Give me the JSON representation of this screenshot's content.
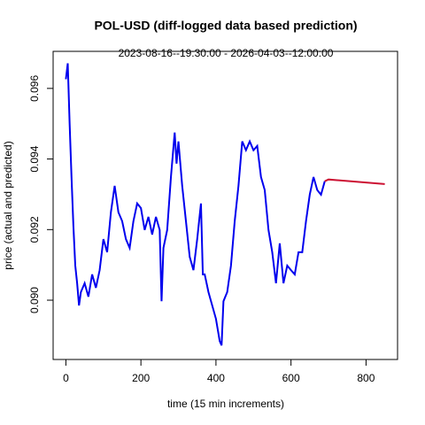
{
  "chart_data": {
    "type": "line",
    "title": "POL-USD (diff-logged data based prediction)",
    "subtitle": "2023-08-16--19:30:00  -  2026-04-03--12:00:00",
    "xlabel": "time (15 min increments)",
    "ylabel": "price (actual and predicted)",
    "xlim": [
      -34,
      884
    ],
    "ylim": [
      0.08832,
      0.09705
    ],
    "xticks": [
      0,
      200,
      400,
      600,
      800
    ],
    "yticks": [
      {
        "value": 0.09,
        "label": "0.090"
      },
      {
        "value": 0.092,
        "label": "0.092"
      },
      {
        "value": 0.094,
        "label": "0.094"
      },
      {
        "value": 0.096,
        "label": "0.096"
      }
    ],
    "series": [
      {
        "color": "#0000ee",
        "x": [
          0,
          5,
          10,
          15,
          20,
          25,
          30,
          35,
          40,
          50,
          60,
          70,
          80,
          90,
          100,
          110,
          120,
          130,
          140,
          150,
          160,
          170,
          180,
          190,
          200,
          210,
          220,
          230,
          240,
          250,
          255,
          260,
          270,
          280,
          290,
          295,
          300,
          310,
          320,
          330,
          340,
          350,
          360,
          365,
          370,
          380,
          390,
          400,
          410,
          415,
          420,
          430,
          440,
          450,
          460,
          470,
          480,
          490,
          500,
          510,
          520,
          530,
          540,
          550,
          560,
          570,
          580,
          590,
          600,
          610,
          620,
          630,
          640,
          650,
          660,
          670,
          680,
          690
        ],
        "values": [
          0.09626,
          0.09671,
          0.095,
          0.09349,
          0.09211,
          0.09098,
          0.09048,
          0.08985,
          0.09023,
          0.09048,
          0.0901,
          0.09073,
          0.09035,
          0.09085,
          0.09173,
          0.09136,
          0.09249,
          0.09324,
          0.09249,
          0.09224,
          0.09173,
          0.09148,
          0.09224,
          0.09274,
          0.09261,
          0.09199,
          0.09236,
          0.09186,
          0.09236,
          0.09199,
          0.08997,
          0.09148,
          0.09199,
          0.09349,
          0.09475,
          0.09387,
          0.0945,
          0.09324,
          0.09224,
          0.09123,
          0.09085,
          0.09173,
          0.09274,
          0.09073,
          0.09073,
          0.09023,
          0.08985,
          0.08947,
          0.08884,
          0.08872,
          0.08997,
          0.09023,
          0.09098,
          0.09224,
          0.09324,
          0.0945,
          0.09425,
          0.0945,
          0.09425,
          0.09437,
          0.09349,
          0.09312,
          0.09199,
          0.09136,
          0.09048,
          0.09161,
          0.09048,
          0.09098,
          0.09085,
          0.09073,
          0.09136,
          0.09136,
          0.09224,
          0.09299,
          0.09349,
          0.09312,
          0.09299,
          0.09337
        ]
      },
      {
        "color": "#cc1133",
        "x": [
          690,
          700,
          850
        ],
        "values": [
          0.09337,
          0.09342,
          0.09329
        ]
      }
    ]
  }
}
